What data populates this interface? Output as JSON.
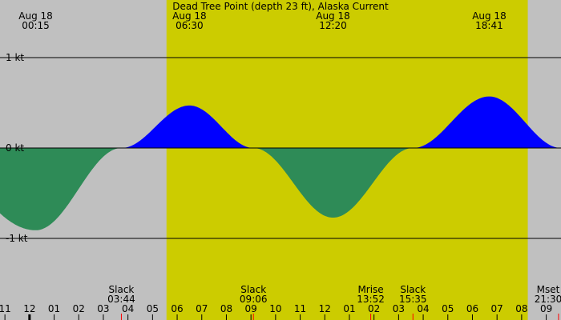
{
  "title": "Dead Tree Point (depth 23 ft), Alaska Current",
  "colors": {
    "background": "#c0c0c0",
    "daylight": "#cccc00",
    "flood": "#0000ff",
    "ebb": "#2e8b57",
    "axis_line": "#000000",
    "event_tick": "#ff0000"
  },
  "chart_data": {
    "type": "area",
    "title": "Dead Tree Point (depth 23 ft), Alaska Current",
    "xlabel": "",
    "ylabel": "",
    "x_unit": "hours after 00:00 Aug 18 (x = 0 is 00:00, x = 24 is midnight Aug 19)",
    "xlim": [
      -1.2,
      21.6
    ],
    "ylim": [
      -1.55,
      1.7
    ],
    "y_ticks": [
      {
        "value": 1,
        "label": "1 kt"
      },
      {
        "value": 0,
        "label": "0 kt"
      },
      {
        "value": -1,
        "label": "-1 kt"
      }
    ],
    "daylight": {
      "start": "05:34",
      "end": "20:15"
    },
    "current_series": [
      {
        "time": "00:15",
        "speed": -0.91,
        "label": "Aug 18 00:15"
      },
      {
        "time": "03:44",
        "speed": 0,
        "label": "Slack 03:44"
      },
      {
        "time": "06:30",
        "speed": 0.47,
        "label": "Aug 18 06:30"
      },
      {
        "time": "09:06",
        "speed": 0,
        "label": "Slack 09:06"
      },
      {
        "time": "12:20",
        "speed": -0.77,
        "label": "Aug 18 12:20"
      },
      {
        "time": "15:35",
        "speed": 0,
        "label": "Slack 15:35"
      },
      {
        "time": "18:41",
        "speed": 0.57,
        "label": "Aug 18 18:41"
      },
      {
        "time": "21:36",
        "speed": 0
      }
    ],
    "top_labels": [
      {
        "date": "Aug 18",
        "time": "00:15"
      },
      {
        "date": "Aug 18",
        "time": "06:30"
      },
      {
        "date": "Aug 18",
        "time": "12:20"
      },
      {
        "date": "Aug 18",
        "time": "18:41"
      }
    ],
    "events": [
      {
        "name": "Slack",
        "time": "03:44"
      },
      {
        "name": "Slack",
        "time": "09:06"
      },
      {
        "name": "Mrise",
        "time": "13:52"
      },
      {
        "name": "Slack",
        "time": "15:35"
      },
      {
        "name": "Mset",
        "time": "21:30"
      }
    ],
    "hour_ticks": [
      {
        "time": "-01:00",
        "label": "11"
      },
      {
        "time": "00:00",
        "label": "12",
        "major": true
      },
      {
        "time": "01:00",
        "label": "01"
      },
      {
        "time": "02:00",
        "label": "02"
      },
      {
        "time": "03:00",
        "label": "03"
      },
      {
        "time": "04:00",
        "label": "04"
      },
      {
        "time": "05:00",
        "label": "05"
      },
      {
        "time": "06:00",
        "label": "06"
      },
      {
        "time": "07:00",
        "label": "07"
      },
      {
        "time": "08:00",
        "label": "08"
      },
      {
        "time": "09:00",
        "label": "09"
      },
      {
        "time": "10:00",
        "label": "10"
      },
      {
        "time": "11:00",
        "label": "11"
      },
      {
        "time": "12:00",
        "label": "12"
      },
      {
        "time": "13:00",
        "label": "01"
      },
      {
        "time": "14:00",
        "label": "02"
      },
      {
        "time": "15:00",
        "label": "03"
      },
      {
        "time": "16:00",
        "label": "04"
      },
      {
        "time": "17:00",
        "label": "05"
      },
      {
        "time": "18:00",
        "label": "06"
      },
      {
        "time": "19:00",
        "label": "07"
      },
      {
        "time": "20:00",
        "label": "08"
      },
      {
        "time": "21:00",
        "label": "09"
      }
    ]
  }
}
